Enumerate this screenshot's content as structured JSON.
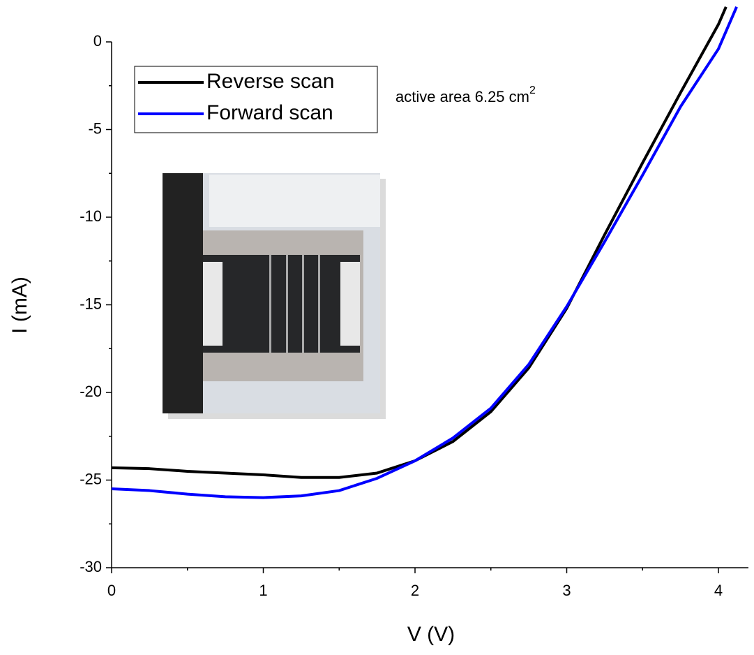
{
  "chart_data": {
    "type": "line",
    "xlabel": "V (V)",
    "ylabel": "I (mA)",
    "annotation": {
      "text": "active area 6.25 cm",
      "superscript": "2"
    },
    "xlim": [
      0,
      4.2
    ],
    "ylim": [
      -30,
      2
    ],
    "xticks": [
      0,
      1,
      2,
      3,
      4
    ],
    "yticks": [
      -30,
      -25,
      -20,
      -15,
      -10,
      -5,
      0
    ],
    "xminor_ticks": [
      0.5,
      1.5,
      2.5,
      3.5
    ],
    "yminor_ticks": [
      -27.5,
      -22.5,
      -17.5,
      -12.5,
      -7.5,
      -2.5
    ],
    "legend": "upper left",
    "series": [
      {
        "name": "Reverse scan",
        "color": "#000000",
        "x": [
          0,
          0.25,
          0.5,
          0.75,
          1.0,
          1.25,
          1.5,
          1.75,
          2.0,
          2.25,
          2.5,
          2.75,
          3.0,
          3.25,
          3.5,
          3.75,
          4.0,
          4.05
        ],
        "values": [
          -24.3,
          -24.35,
          -24.5,
          -24.6,
          -24.7,
          -24.85,
          -24.85,
          -24.6,
          -23.9,
          -22.8,
          -21.1,
          -18.6,
          -15.2,
          -11.0,
          -6.9,
          -2.9,
          1.0,
          2.0
        ]
      },
      {
        "name": "Forward scan",
        "color": "#0000ff",
        "x": [
          0,
          0.25,
          0.5,
          0.75,
          1.0,
          1.25,
          1.5,
          1.75,
          2.0,
          2.25,
          2.5,
          2.75,
          3.0,
          3.25,
          3.5,
          3.75,
          4.0,
          4.12
        ],
        "values": [
          -25.5,
          -25.6,
          -25.8,
          -25.95,
          -26.0,
          -25.9,
          -25.6,
          -24.9,
          -23.9,
          -22.6,
          -20.9,
          -18.4,
          -15.1,
          -11.4,
          -7.6,
          -3.7,
          -0.4,
          2.0
        ]
      }
    ]
  }
}
